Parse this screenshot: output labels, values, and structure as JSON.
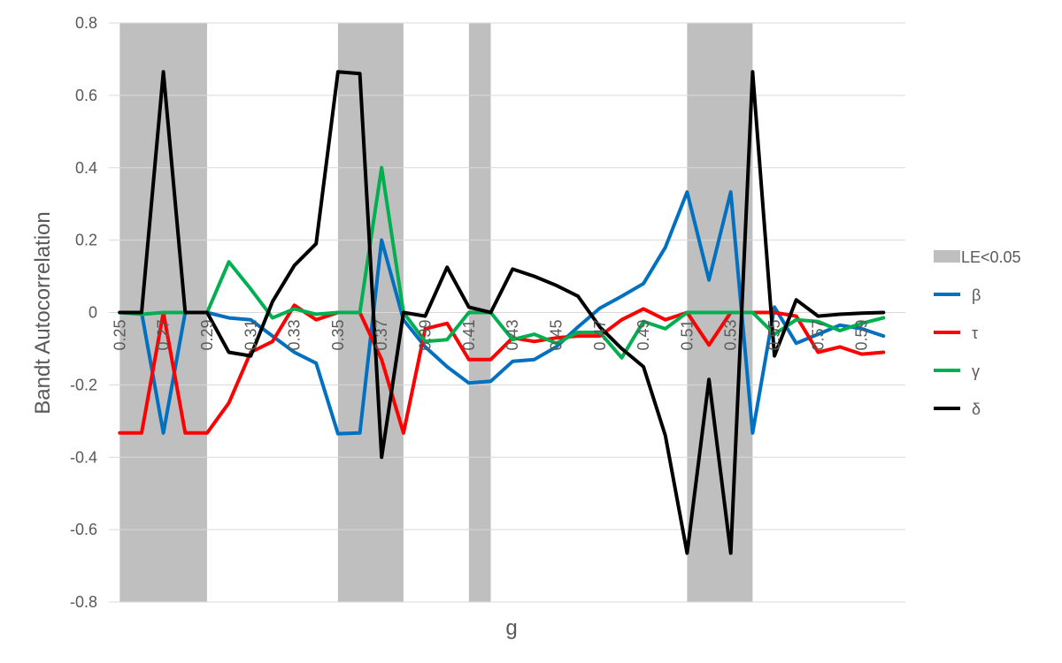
{
  "chart_data": {
    "type": "line",
    "xlabel": "g",
    "ylabel": "Bandt Autocorrelation",
    "ylim": [
      -0.8,
      0.8
    ],
    "yticks": [
      "0.8",
      "0.6",
      "0.4",
      "0.2",
      "0",
      "-0.2",
      "-0.4",
      "-0.6",
      "-0.8"
    ],
    "x": [
      0.25,
      0.26,
      0.27,
      0.28,
      0.29,
      0.3,
      0.31,
      0.32,
      0.33,
      0.34,
      0.35,
      0.36,
      0.37,
      0.38,
      0.39,
      0.4,
      0.41,
      0.42,
      0.43,
      0.44,
      0.45,
      0.46,
      0.47,
      0.48,
      0.49,
      0.5,
      0.51,
      0.52,
      0.53,
      0.54,
      0.55,
      0.56,
      0.57,
      0.58,
      0.59,
      0.6
    ],
    "xtick_labels": [
      "0.25",
      "0.27",
      "0.29",
      "0.31",
      "0.33",
      "0.35",
      "0.37",
      "0.39",
      "0.41",
      "0.43",
      "0.45",
      "0.47",
      "0.49",
      "0.51",
      "0.53",
      "0.55",
      "0.57",
      "0.59"
    ],
    "grid": true,
    "legend_position": "right",
    "shaded_regions": {
      "name": "LE<0.05",
      "color": "#bfbfbf",
      "ranges": [
        [
          0.25,
          0.29
        ],
        [
          0.35,
          0.38
        ],
        [
          0.41,
          0.42
        ],
        [
          0.51,
          0.54
        ]
      ]
    },
    "series": [
      {
        "name": "β",
        "color": "#0070c0",
        "values": [
          0,
          0,
          -0.333,
          0,
          0,
          -0.015,
          -0.02,
          -0.065,
          -0.11,
          -0.14,
          -0.335,
          -0.333,
          0.2,
          -0.02,
          -0.095,
          -0.15,
          -0.195,
          -0.19,
          -0.135,
          -0.13,
          -0.095,
          -0.04,
          0.012,
          0.045,
          0.08,
          0.18,
          0.333,
          0.09,
          0.333,
          -0.333,
          0.015,
          -0.085,
          -0.06,
          -0.035,
          -0.045,
          -0.065
        ]
      },
      {
        "name": "τ",
        "color": "#ff0000",
        "values": [
          -0.333,
          -0.333,
          0,
          -0.333,
          -0.333,
          -0.25,
          -0.11,
          -0.08,
          0.02,
          -0.02,
          0,
          0,
          -0.13,
          -0.333,
          -0.045,
          -0.03,
          -0.13,
          -0.13,
          -0.07,
          -0.08,
          -0.07,
          -0.065,
          -0.065,
          -0.02,
          0.01,
          -0.02,
          0,
          -0.09,
          0,
          0,
          0,
          -0.01,
          -0.11,
          -0.095,
          -0.115,
          -0.11
        ]
      },
      {
        "name": "γ",
        "color": "#00b050",
        "values": [
          0,
          -0.005,
          0,
          0,
          0,
          0.14,
          0.065,
          -0.015,
          0.01,
          -0.005,
          0,
          0,
          0.4,
          0,
          -0.08,
          -0.075,
          0,
          0,
          -0.075,
          -0.06,
          -0.085,
          -0.055,
          -0.055,
          -0.125,
          -0.025,
          -0.045,
          0,
          0,
          0,
          0,
          -0.06,
          -0.02,
          -0.025,
          -0.05,
          -0.03,
          -0.015
        ]
      },
      {
        "name": "δ",
        "color": "#000000",
        "values": [
          0,
          0,
          0.665,
          0,
          0,
          -0.11,
          -0.12,
          0.03,
          0.13,
          0.19,
          0.665,
          0.66,
          -0.4,
          0,
          -0.01,
          0.125,
          0.015,
          0,
          0.12,
          0.1,
          0.075,
          0.045,
          -0.04,
          -0.1,
          -0.15,
          -0.34,
          -0.665,
          -0.185,
          -0.665,
          0.665,
          -0.12,
          0.035,
          -0.01,
          -0.005,
          -0.002,
          0
        ]
      }
    ]
  }
}
